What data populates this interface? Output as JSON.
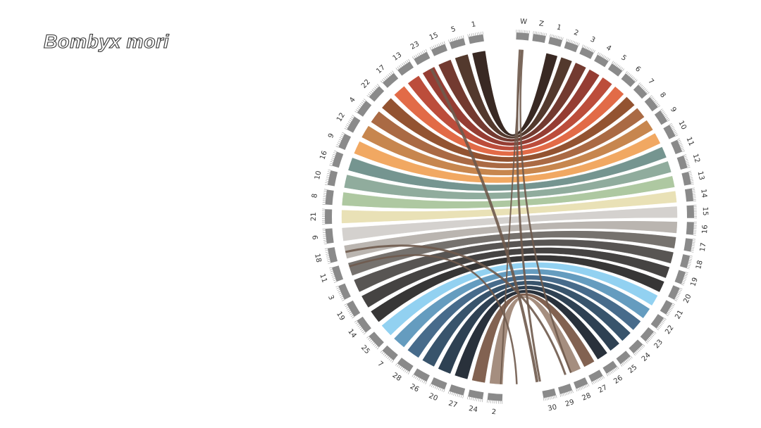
{
  "title": "Bombyx mori",
  "left_chromosomes": [
    "1",
    "5",
    "15",
    "23",
    "13",
    "17",
    "22",
    "4",
    "12",
    "9",
    "16",
    "10",
    "8",
    "21",
    "6",
    "18",
    "11",
    "3",
    "19",
    "14",
    "25",
    "7",
    "28",
    "26",
    "20",
    "27",
    "24",
    "2"
  ],
  "right_chromosomes": [
    "W",
    "Z",
    "1",
    "2",
    "3",
    "4",
    "5",
    "6",
    "7",
    "8",
    "9",
    "10",
    "11",
    "12",
    "13",
    "14",
    "15",
    "16",
    "17",
    "18",
    "19",
    "20",
    "21",
    "22",
    "23",
    "24",
    "25",
    "26",
    "27",
    "28",
    "29",
    "30"
  ],
  "palette": [
    "#2e1d17",
    "#4a2e22",
    "#6b2f25",
    "#8f3328",
    "#b84330",
    "#e0633d",
    "#8d4a26",
    "#a5623a",
    "#c47f45",
    "#f0a35a",
    "#6e8f8a",
    "#8aa898",
    "#aac59c",
    "#e8dfb2",
    "#d2cfcb",
    "#b6b1ac",
    "#6f6a66",
    "#4f4c4a",
    "#3b3938",
    "#2c2b2b",
    "#8ccff0",
    "#5d97bc",
    "#3d6385",
    "#2d4b64",
    "#23374a",
    "#1d2630",
    "#7b5a48",
    "#a08878"
  ],
  "link_color": "#6f5a4c",
  "chords": [
    {
      "from": "1",
      "to": "1",
      "color": "#2e1d17"
    },
    {
      "from": "5",
      "to": "2",
      "color": "#4a2e22"
    },
    {
      "from": "15",
      "to": "3",
      "color": "#6b2f25"
    },
    {
      "from": "23",
      "to": "4",
      "color": "#8f3328"
    },
    {
      "from": "13",
      "to": "5",
      "color": "#b84330"
    },
    {
      "from": "17",
      "to": "6",
      "color": "#e0633d"
    },
    {
      "from": "22",
      "to": "7",
      "color": "#8d4a26"
    },
    {
      "from": "4",
      "to": "8",
      "color": "#a5623a"
    },
    {
      "from": "12",
      "to": "9",
      "color": "#c47f45"
    },
    {
      "from": "9",
      "to": "10",
      "color": "#f0a35a"
    },
    {
      "from": "16",
      "to": "11",
      "color": "#6e8f8a"
    },
    {
      "from": "10",
      "to": "12",
      "color": "#8aa898"
    },
    {
      "from": "8",
      "to": "13",
      "color": "#aac59c"
    },
    {
      "from": "21",
      "to": "14",
      "color": "#e8dfb2"
    },
    {
      "from": "6",
      "to": "15",
      "color": "#d2cfcb"
    },
    {
      "from": "18",
      "to": "16",
      "color": "#b6b1ac"
    },
    {
      "from": "11",
      "to": "17",
      "color": "#6f6a66"
    },
    {
      "from": "3",
      "to": "18",
      "color": "#4f4c4a"
    },
    {
      "from": "19",
      "to": "19",
      "color": "#3b3938"
    },
    {
      "from": "14",
      "to": "20",
      "color": "#2c2b2b"
    },
    {
      "from": "25",
      "to": "21",
      "color": "#8ccff0"
    },
    {
      "from": "7",
      "to": "22",
      "color": "#5d97bc"
    },
    {
      "from": "28",
      "to": "23",
      "color": "#3d6385"
    },
    {
      "from": "26",
      "to": "24",
      "color": "#2d4b64"
    },
    {
      "from": "20",
      "to": "25",
      "color": "#23374a"
    },
    {
      "from": "27",
      "to": "26",
      "color": "#1d2630"
    },
    {
      "from": "24",
      "to": "27",
      "color": "#7b5a48"
    },
    {
      "from": "2",
      "to": "28",
      "color": "#a08878"
    }
  ]
}
